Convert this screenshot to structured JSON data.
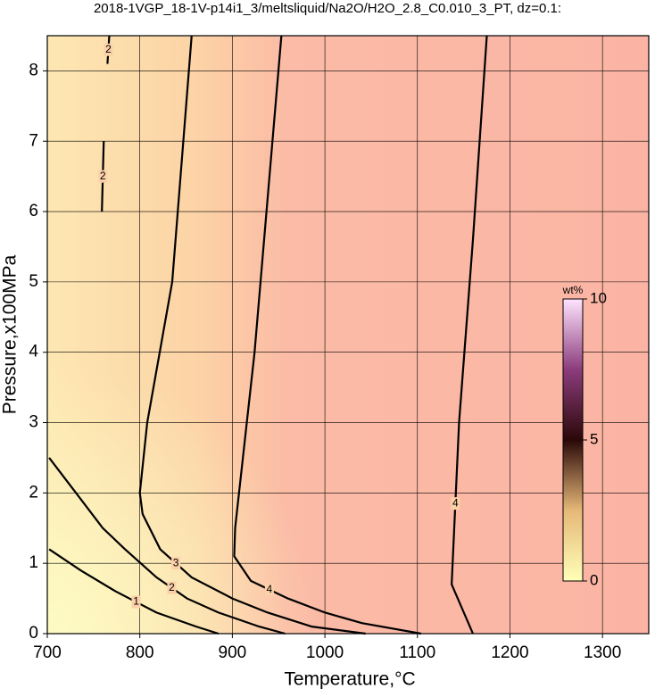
{
  "chart_data": {
    "type": "contour",
    "title": "2018-1VGP_18-1V-p14i1_3/meltsliquid/Na2O/H2O_2.8_C0.010_3_PT, dz=0.1:",
    "x_label": "Temperature,°C",
    "y_label": "Pressure,x100MPa",
    "xlim": [
      700,
      1350
    ],
    "ylim": [
      0,
      8.5
    ],
    "xticks": [
      700,
      800,
      900,
      1000,
      1100,
      1200,
      1300
    ],
    "yticks": [
      0,
      1,
      2,
      3,
      4,
      5,
      6,
      7,
      8
    ],
    "grid": true,
    "line_color": "#000000",
    "series": [
      {
        "level": 1,
        "x": [
          702,
          736,
          774,
          818,
          861,
          885
        ],
        "y": [
          1.2,
          0.9,
          0.6,
          0.3,
          0.1,
          0
        ]
      },
      {
        "level": 2,
        "x": [
          702,
          731,
          760,
          784,
          818,
          851,
          885,
          929,
          957
        ],
        "y": [
          2.5,
          2.0,
          1.5,
          1.2,
          0.8,
          0.5,
          0.3,
          0.1,
          0
        ]
      },
      {
        "level": 2,
        "x": [
          767,
          765
        ],
        "y": [
          8.5,
          8.1
        ]
      },
      {
        "level": 2,
        "x": [
          761,
          759
        ],
        "y": [
          7.0,
          6.0
        ]
      },
      {
        "level": 3,
        "x": [
          856,
          835,
          808,
          800,
          803,
          822,
          856,
          900,
          938,
          986,
          1044
        ],
        "y": [
          8.5,
          5.0,
          3.0,
          2.0,
          1.7,
          1.2,
          0.8,
          0.5,
          0.3,
          0.1,
          0
        ]
      },
      {
        "level": 4,
        "x": [
          953,
          924,
          903,
          902,
          920,
          960,
          1000,
          1040,
          1104
        ],
        "y": [
          8.5,
          4.0,
          1.5,
          1.1,
          0.75,
          0.5,
          0.3,
          0.15,
          0
        ]
      },
      {
        "level": 4,
        "x": [
          1175,
          1160,
          1145,
          1137,
          1160
        ],
        "y": [
          8.5,
          5.6,
          3.0,
          0.7,
          0
        ]
      }
    ],
    "colorbar": {
      "label": "wt%",
      "lim": [
        0,
        10
      ],
      "ticks": [
        0,
        5,
        10
      ],
      "colors": [
        "#ffffb8",
        "#e6b878",
        "#2a0808",
        "#8c3c7c",
        "#ffe4ff"
      ]
    }
  }
}
